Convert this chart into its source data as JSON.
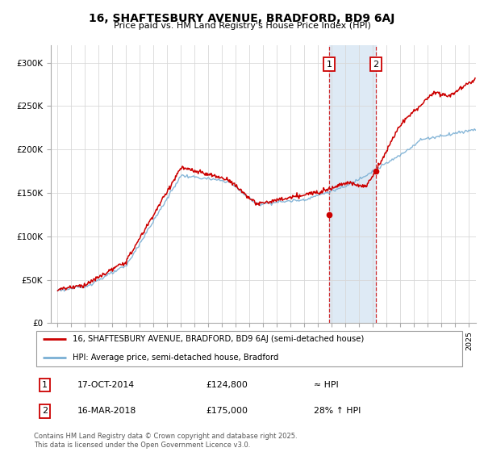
{
  "title": "16, SHAFTESBURY AVENUE, BRADFORD, BD9 6AJ",
  "subtitle": "Price paid vs. HM Land Registry's House Price Index (HPI)",
  "legend_line1": "16, SHAFTESBURY AVENUE, BRADFORD, BD9 6AJ (semi-detached house)",
  "legend_line2": "HPI: Average price, semi-detached house, Bradford",
  "transaction1_date": "17-OCT-2014",
  "transaction1_price": "£124,800",
  "transaction1_hpi": "≈ HPI",
  "transaction2_date": "16-MAR-2018",
  "transaction2_price": "£175,000",
  "transaction2_hpi": "28% ↑ HPI",
  "footer": "Contains HM Land Registry data © Crown copyright and database right 2025.\nThis data is licensed under the Open Government Licence v3.0.",
  "hpi_color": "#7aafd4",
  "price_color": "#cc0000",
  "highlight_color": "#deeaf5",
  "transaction1_x": 2014.8,
  "transaction2_x": 2018.2,
  "ylim_min": 0,
  "ylim_max": 320000,
  "xlim_min": 1994.5,
  "xlim_max": 2025.5,
  "background_color": "#ffffff",
  "grid_color": "#d8d8d8",
  "title_fontsize": 10,
  "subtitle_fontsize": 8
}
